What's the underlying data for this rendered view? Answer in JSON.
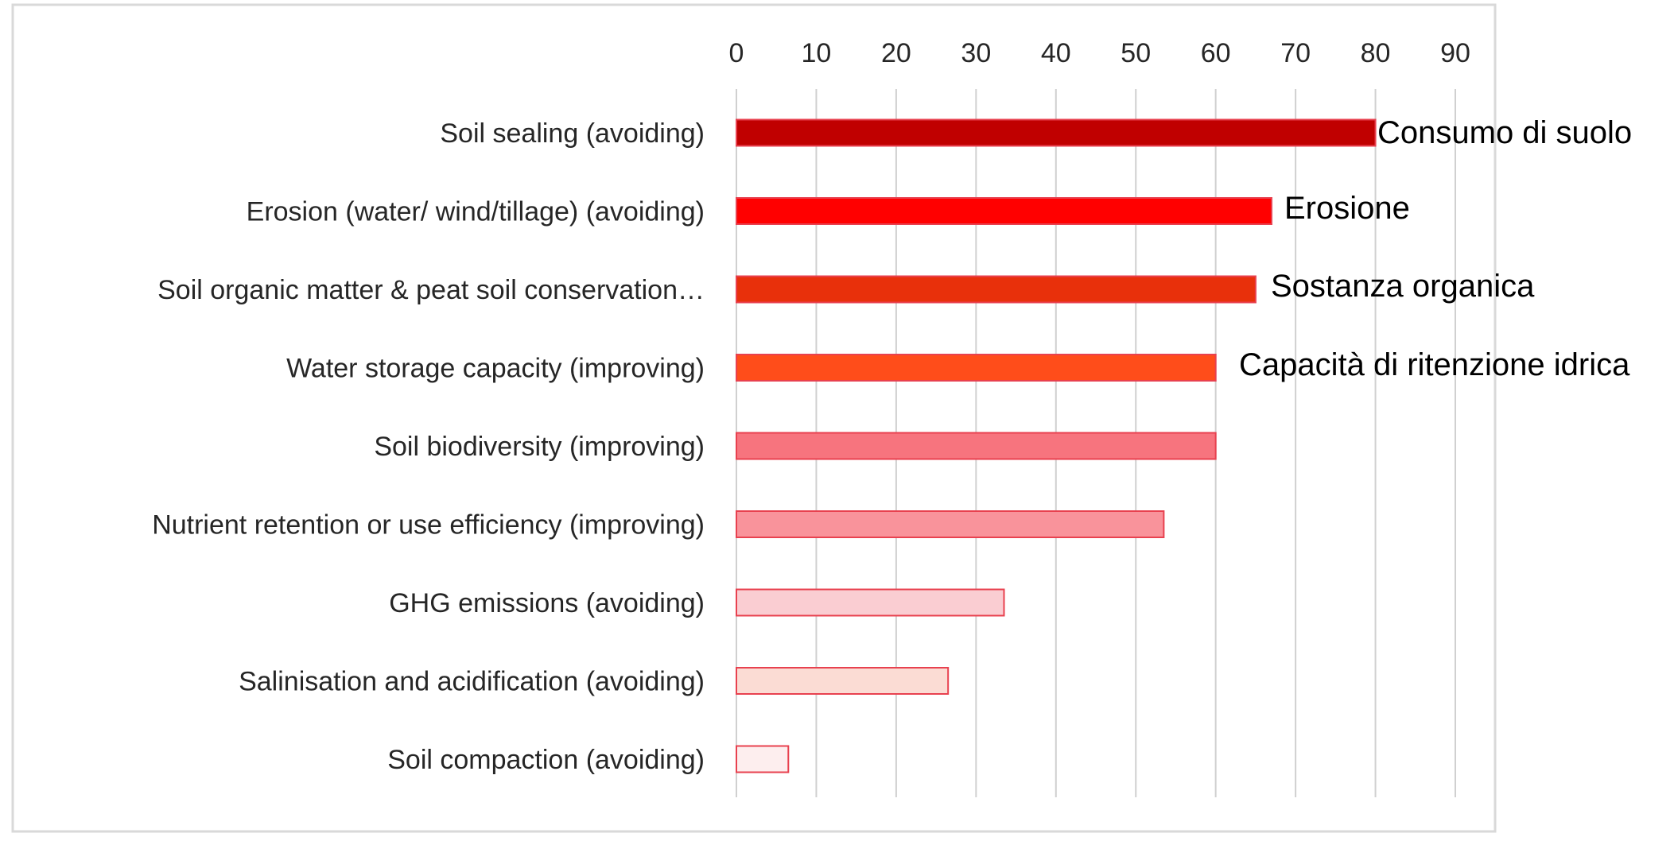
{
  "chart_data": {
    "type": "bar",
    "orientation": "horizontal",
    "categories": [
      "Soil sealing  (avoiding)",
      "Erosion (water/ wind/tillage) (avoiding)",
      "Soil organic matter & peat soil conservation…",
      "Water storage capacity (improving)",
      "Soil biodiversity (improving)",
      "Nutrient retention or use efficiency (improving)",
      "GHG emissions (avoiding)",
      "Salinisation and acidification (avoiding)",
      "Soil compaction (avoiding)"
    ],
    "values": [
      80,
      67,
      65,
      60,
      60,
      53.5,
      33.5,
      26.5,
      6.5
    ],
    "bar_colors": [
      "#C00000",
      "#FF0000",
      "#E8300B",
      "#FF4D1A",
      "#F7747E",
      "#F9939B",
      "#FACDD2",
      "#FBDCD4",
      "#FDEEEE"
    ],
    "bar_stroke": "#E8414F",
    "xlim": [
      0,
      90
    ],
    "xticks": [
      "0",
      "10",
      "20",
      "30",
      "40",
      "50",
      "60",
      "70",
      "80",
      "90"
    ],
    "grid": true,
    "axis_position": "top",
    "annotations": [
      "Consumo di suolo",
      "Erosione",
      "Sostanza organica",
      "Capacità di ritenzione idrica"
    ]
  }
}
